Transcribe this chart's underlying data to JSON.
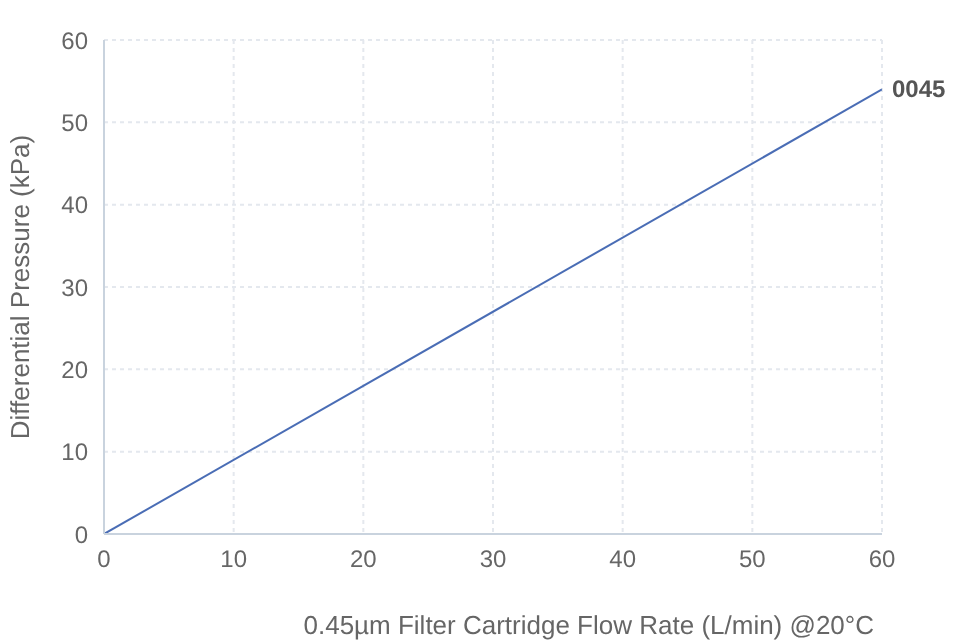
{
  "chart_data": {
    "type": "line",
    "xlabel": "0.45µm Filter Cartridge Flow Rate (L/min) @20°C",
    "ylabel": "Differential Pressure (kPa)",
    "x": [
      0,
      60
    ],
    "series": [
      {
        "name": "0045",
        "color": "#4a6db5",
        "values": [
          0,
          54
        ]
      }
    ],
    "xlim": [
      0,
      60
    ],
    "xticks": [
      0,
      10,
      20,
      30,
      40,
      50,
      60
    ],
    "ylim": [
      0,
      60
    ],
    "yticks": [
      0,
      10,
      20,
      30,
      40,
      50,
      60
    ],
    "grid": true,
    "marker": "none",
    "line_style": "solid"
  }
}
